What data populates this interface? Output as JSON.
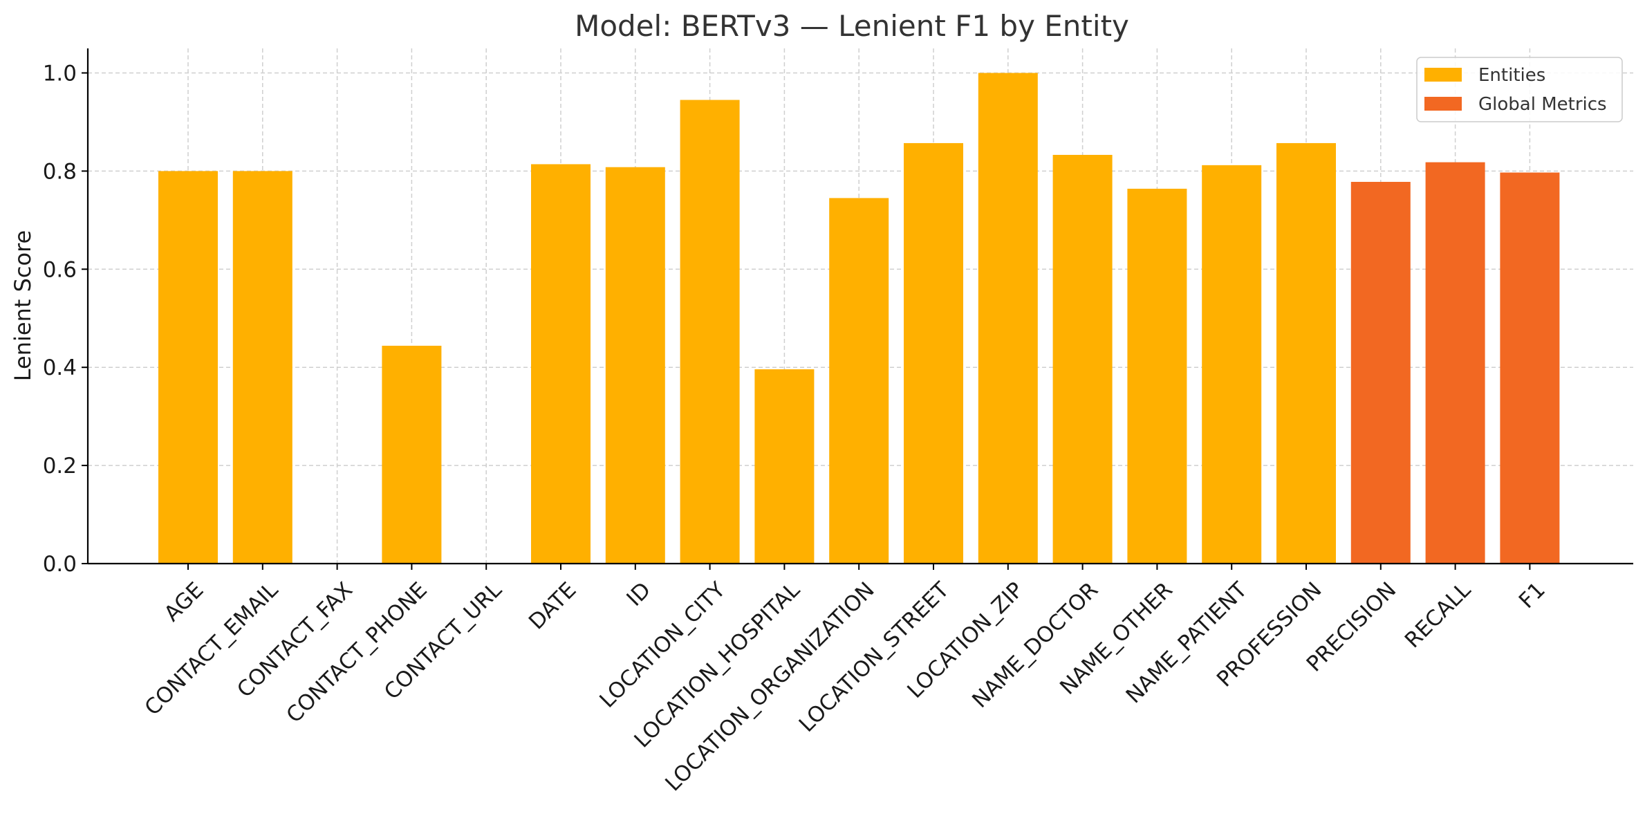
{
  "chart_data": {
    "type": "bar",
    "title": "Model: BERTv3 — Lenient F1 by Entity",
    "xlabel": "",
    "ylabel": "Lenient Score",
    "ylim": [
      0,
      1.05
    ],
    "yticks": [
      "0.0",
      "0.2",
      "0.4",
      "0.6",
      "0.8",
      "1.0"
    ],
    "grid": true,
    "legend_position": "top-right",
    "categories": [
      "AGE",
      "CONTACT_EMAIL",
      "CONTACT_FAX",
      "CONTACT_PHONE",
      "CONTACT_URL",
      "DATE",
      "ID",
      "LOCATION_CITY",
      "LOCATION_HOSPITAL",
      "LOCATION_ORGANIZATION",
      "LOCATION_STREET",
      "LOCATION_ZIP",
      "NAME_DOCTOR",
      "NAME_OTHER",
      "NAME_PATIENT",
      "PROFESSION",
      "PRECISION",
      "RECALL",
      "F1"
    ],
    "values": [
      0.8,
      0.8,
      0.0,
      0.444,
      0.0,
      0.814,
      0.808,
      0.945,
      0.396,
      0.745,
      0.857,
      1.0,
      0.833,
      0.764,
      0.812,
      0.857,
      0.778,
      0.818,
      0.797
    ],
    "groups": [
      "entities",
      "entities",
      "entities",
      "entities",
      "entities",
      "entities",
      "entities",
      "entities",
      "entities",
      "entities",
      "entities",
      "entities",
      "entities",
      "entities",
      "entities",
      "entities",
      "global",
      "global",
      "global"
    ],
    "series": [
      {
        "name": "Entities",
        "color": "#FFB000"
      },
      {
        "name": "Global Metrics",
        "color": "#F26822"
      }
    ]
  }
}
